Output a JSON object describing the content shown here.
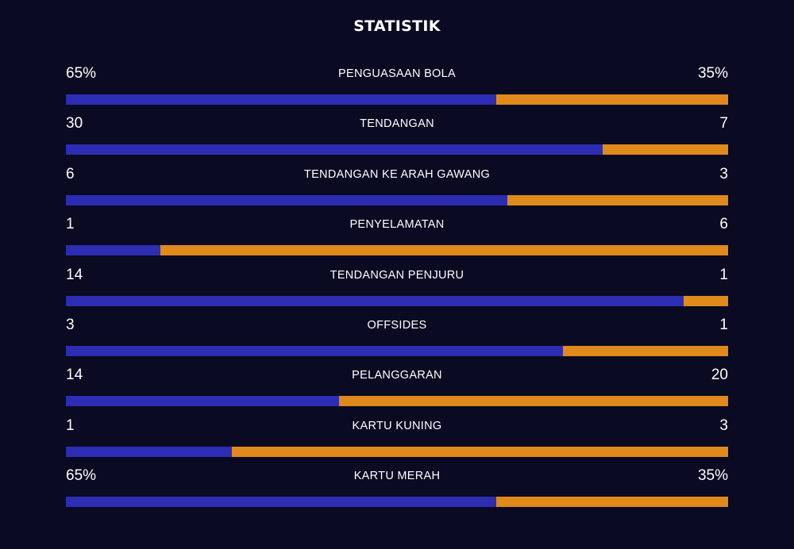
{
  "title": "STATISTIK",
  "colors": {
    "background": "#0a0a22",
    "home_bar": "#2c2db3",
    "away_bar": "#e08a1b",
    "text": "#ffffff"
  },
  "stats": [
    {
      "label": "PENGUASAAN BOLA",
      "home": "65%",
      "away": "35%",
      "home_share": 0.65
    },
    {
      "label": "TENDANGAN",
      "home": "30",
      "away": "7",
      "home_share": 0.81
    },
    {
      "label": "TENDANGAN KE ARAH GAWANG",
      "home": "6",
      "away": "3",
      "home_share": 0.667
    },
    {
      "label": "PENYELAMATAN",
      "home": "1",
      "away": "6",
      "home_share": 0.143
    },
    {
      "label": "TENDANGAN PENJURU",
      "home": "14",
      "away": "1",
      "home_share": 0.933
    },
    {
      "label": "OFFSIDES",
      "home": "3",
      "away": "1",
      "home_share": 0.75
    },
    {
      "label": "PELANGGARAN",
      "home": "14",
      "away": "20",
      "home_share": 0.412
    },
    {
      "label": "KARTU KUNING",
      "home": "1",
      "away": "3",
      "home_share": 0.25
    },
    {
      "label": "KARTU MERAH",
      "home": "65%",
      "away": "35%",
      "home_share": 0.65
    }
  ]
}
